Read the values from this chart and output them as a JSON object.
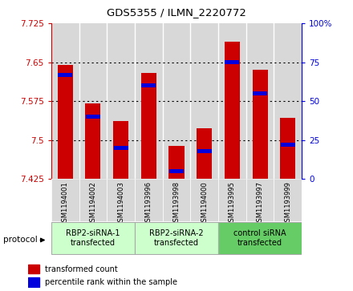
{
  "title": "GDS5355 / ILMN_2220772",
  "samples": [
    "GSM1194001",
    "GSM1194002",
    "GSM1194003",
    "GSM1193996",
    "GSM1193998",
    "GSM1194000",
    "GSM1193995",
    "GSM1193997",
    "GSM1193999"
  ],
  "red_values": [
    7.645,
    7.57,
    7.537,
    7.63,
    7.488,
    7.523,
    7.69,
    7.635,
    7.543
  ],
  "blue_values": [
    7.6,
    7.543,
    7.493,
    7.585,
    7.435,
    7.48,
    7.67,
    7.577,
    7.493
  ],
  "blue_percentiles": [
    67,
    40,
    20,
    60,
    5,
    18,
    75,
    55,
    22
  ],
  "ymin": 7.425,
  "ymax": 7.725,
  "y_ticks": [
    7.425,
    7.5,
    7.575,
    7.65,
    7.725
  ],
  "right_ticks": [
    0,
    25,
    50,
    75,
    100
  ],
  "groups": [
    {
      "label": "RBP2-siRNA-1\ntransfected",
      "start": 0,
      "end": 3,
      "color": "#ccffcc"
    },
    {
      "label": "RBP2-siRNA-2\ntransfected",
      "start": 3,
      "end": 6,
      "color": "#ccffcc"
    },
    {
      "label": "control siRNA\ntransfected",
      "start": 6,
      "end": 9,
      "color": "#66cc66"
    }
  ],
  "bar_width": 0.55,
  "red_color": "#cc0000",
  "blue_color": "#0000dd",
  "tick_color_left": "#cc0000",
  "tick_color_right": "#0000dd",
  "protocol_label": "protocol",
  "legend_red": "transformed count",
  "legend_blue": "percentile rank within the sample",
  "bar_bg_color": "#d8d8d8",
  "group_border_color": "#aaaaaa"
}
